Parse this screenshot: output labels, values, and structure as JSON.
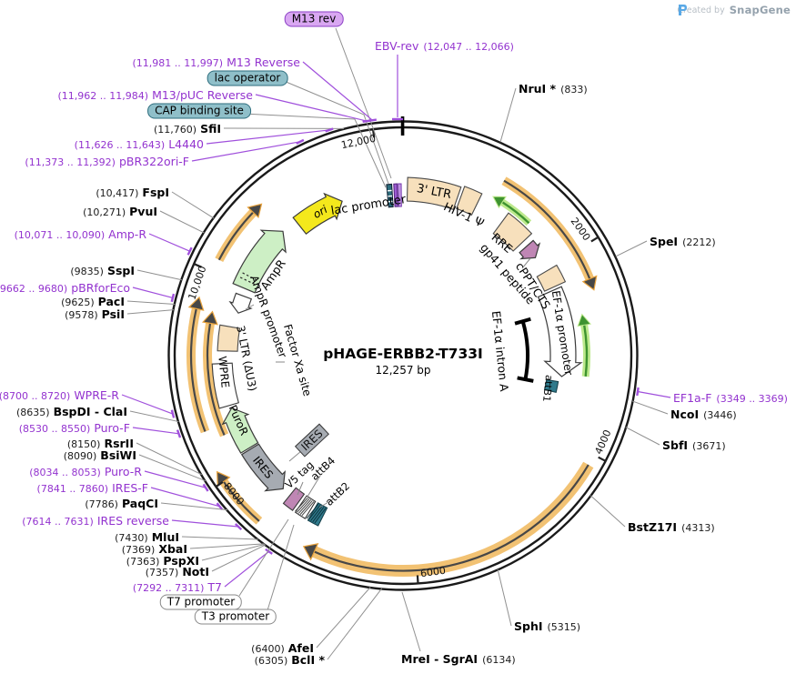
{
  "watermark": {
    "created_by": "Created by",
    "brand": "SnapGene"
  },
  "plasmid": {
    "name": "pHAGE-ERBB2-T733I",
    "size": "12,257 bp"
  },
  "tick_labels": [
    "2000",
    "4000",
    "6000",
    "8000",
    "10,000",
    "12,000"
  ],
  "callouts": [
    {
      "id": "m13-rev-box",
      "kind": "box-purple",
      "name": "M13 rev"
    },
    {
      "id": "ebv-rev",
      "kind": "primer",
      "name": "EBV-rev",
      "post": "(12,047 .. 12,066)"
    },
    {
      "id": "m13-reverse",
      "kind": "primer",
      "pre": "(11,981 .. 11,997)",
      "name": "M13 Reverse"
    },
    {
      "id": "lac-operator",
      "kind": "box-teal",
      "name": "lac operator"
    },
    {
      "id": "m13-puc-reverse",
      "kind": "primer",
      "pre": "(11,962 .. 11,984)",
      "name": "M13/pUC Reverse"
    },
    {
      "id": "cap-binding-site",
      "kind": "box-teal",
      "name": "CAP binding site"
    },
    {
      "id": "sfii",
      "kind": "enzyme",
      "pre": "(11,760)",
      "name": "SfiI"
    },
    {
      "id": "l4440",
      "kind": "primer",
      "pre": "(11,626 .. 11,643)",
      "name": "L4440"
    },
    {
      "id": "pbr322ori-f",
      "kind": "primer",
      "pre": "(11,373 .. 11,392)",
      "name": "pBR322ori-F"
    },
    {
      "id": "fspi",
      "kind": "enzyme",
      "pre": "(10,417)",
      "name": "FspI"
    },
    {
      "id": "pvui",
      "kind": "enzyme",
      "pre": "(10,271)",
      "name": "PvuI"
    },
    {
      "id": "amp-r",
      "kind": "primer",
      "pre": "(10,071 .. 10,090)",
      "name": "Amp-R"
    },
    {
      "id": "sspi",
      "kind": "enzyme",
      "pre": "(9835)",
      "name": "SspI"
    },
    {
      "id": "pbrforeco",
      "kind": "primer",
      "pre": "(9662 .. 9680)",
      "name": "pBRforEco"
    },
    {
      "id": "paci",
      "kind": "enzyme",
      "pre": "(9625)",
      "name": "PacI"
    },
    {
      "id": "psii",
      "kind": "enzyme",
      "pre": "(9578)",
      "name": "PsiI"
    },
    {
      "id": "wpre-r",
      "kind": "primer",
      "pre": "(8700 .. 8720)",
      "name": "WPRE-R"
    },
    {
      "id": "bspdi-clai",
      "kind": "enzyme",
      "pre": "(8635)",
      "name": "BspDI",
      "sep": " - ",
      "name2": "ClaI"
    },
    {
      "id": "puro-f",
      "kind": "primer",
      "pre": "(8530 .. 8550)",
      "name": "Puro-F"
    },
    {
      "id": "rsrii",
      "kind": "enzyme",
      "pre": "(8150)",
      "name": "RsrII"
    },
    {
      "id": "bsiwi",
      "kind": "enzyme",
      "pre": "(8090)",
      "name": "BsiWI"
    },
    {
      "id": "puro-r",
      "kind": "primer",
      "pre": "(8034 .. 8053)",
      "name": "Puro-R"
    },
    {
      "id": "ires-f",
      "kind": "primer",
      "pre": "(7841 .. 7860)",
      "name": "IRES-F"
    },
    {
      "id": "paqci",
      "kind": "enzyme",
      "pre": "(7786)",
      "name": "PaqCI"
    },
    {
      "id": "ires-reverse",
      "kind": "primer",
      "pre": "(7614 .. 7631)",
      "name": "IRES reverse"
    },
    {
      "id": "mlui",
      "kind": "enzyme",
      "pre": "(7430)",
      "name": "MluI"
    },
    {
      "id": "xbai",
      "kind": "enzyme",
      "pre": "(7369)",
      "name": "XbaI"
    },
    {
      "id": "pspxi",
      "kind": "enzyme",
      "pre": "(7363)",
      "name": "PspXI"
    },
    {
      "id": "noti",
      "kind": "enzyme",
      "pre": "(7357)",
      "name": "NotI"
    },
    {
      "id": "t7",
      "kind": "primer",
      "pre": "(7292 .. 7311)",
      "name": "T7"
    },
    {
      "id": "t7-promoter",
      "kind": "box-white",
      "name": "T7 promoter"
    },
    {
      "id": "t3-promoter",
      "kind": "box-white",
      "name": "T3 promoter"
    },
    {
      "id": "afei",
      "kind": "enzyme",
      "pre": "(6400)",
      "name": "AfeI"
    },
    {
      "id": "bcli",
      "kind": "enzyme",
      "pre": "(6305)",
      "name": "BclI *"
    },
    {
      "id": "mrei-sgrai",
      "kind": "enzyme",
      "name": "MreI",
      "sep": " - ",
      "name2": "SgrAI",
      "post": "(6134)"
    },
    {
      "id": "sphi",
      "kind": "enzyme",
      "name": "SphI",
      "post": "(5315)"
    },
    {
      "id": "bstz17i",
      "kind": "enzyme",
      "name": "BstZ17I",
      "post": "(4313)"
    },
    {
      "id": "sbfi",
      "kind": "enzyme",
      "name": "SbfI",
      "post": "(3671)"
    },
    {
      "id": "ncoi",
      "kind": "enzyme",
      "name": "NcoI",
      "post": "(3446)"
    },
    {
      "id": "ef1a-f",
      "kind": "primer",
      "name": "EF1a-F",
      "post": "(3349 .. 3369)"
    },
    {
      "id": "spei",
      "kind": "enzyme",
      "name": "SpeI",
      "post": "(2212)"
    },
    {
      "id": "nrui",
      "kind": "enzyme",
      "name": "NruI *",
      "post": "(833)"
    }
  ],
  "inner_labels": [
    {
      "id": "ori",
      "label": "ori"
    },
    {
      "id": "lac-promoter",
      "label": "lac promoter"
    },
    {
      "id": "ltr3-top",
      "label": "3' LTR"
    },
    {
      "id": "hiv1-psi",
      "label": "HIV-1 Ψ"
    },
    {
      "id": "rre",
      "label": "RRE"
    },
    {
      "id": "gp41-peptide",
      "label": "gp41 peptide"
    },
    {
      "id": "cppt-cts",
      "label": "cPPT/CTS"
    },
    {
      "id": "ef1a-promoter",
      "label": "EF-1α promoter"
    },
    {
      "id": "attb1",
      "label": "attB1"
    },
    {
      "id": "ef1a-intron-a",
      "label": "EF-1α intron A"
    },
    {
      "id": "factor-xa-site",
      "label": "Factor Xa site"
    },
    {
      "id": "ampr-promoter",
      "label": "AmpR promoter"
    },
    {
      "id": "ampr",
      "label": "AmpR"
    },
    {
      "id": "ltr3-du3",
      "label": "3' LTR (ΔU3)"
    },
    {
      "id": "wpre",
      "label": "WPRE"
    },
    {
      "id": "puror",
      "label": "PuroR"
    },
    {
      "id": "ires-arrow",
      "label": "IRES"
    },
    {
      "id": "ires-box",
      "label": "IRES"
    },
    {
      "id": "v5-tag",
      "label": "V5 tag"
    },
    {
      "id": "attb4",
      "label": "attB4"
    },
    {
      "id": "attb2",
      "label": "attB2"
    }
  ],
  "colors": {
    "primer_purple": "#9333cf",
    "tan_feature": "#f7e0bc",
    "orf_band_orange": "#f2c273",
    "green_arrow": "#3e9330",
    "light_green_feature": "#cdefc5",
    "gray_feature": "#a6abb2",
    "plum_feature": "#bf86b4",
    "teal_feature": "#2f7a8c",
    "ori_yellow": "#f4e81c"
  }
}
